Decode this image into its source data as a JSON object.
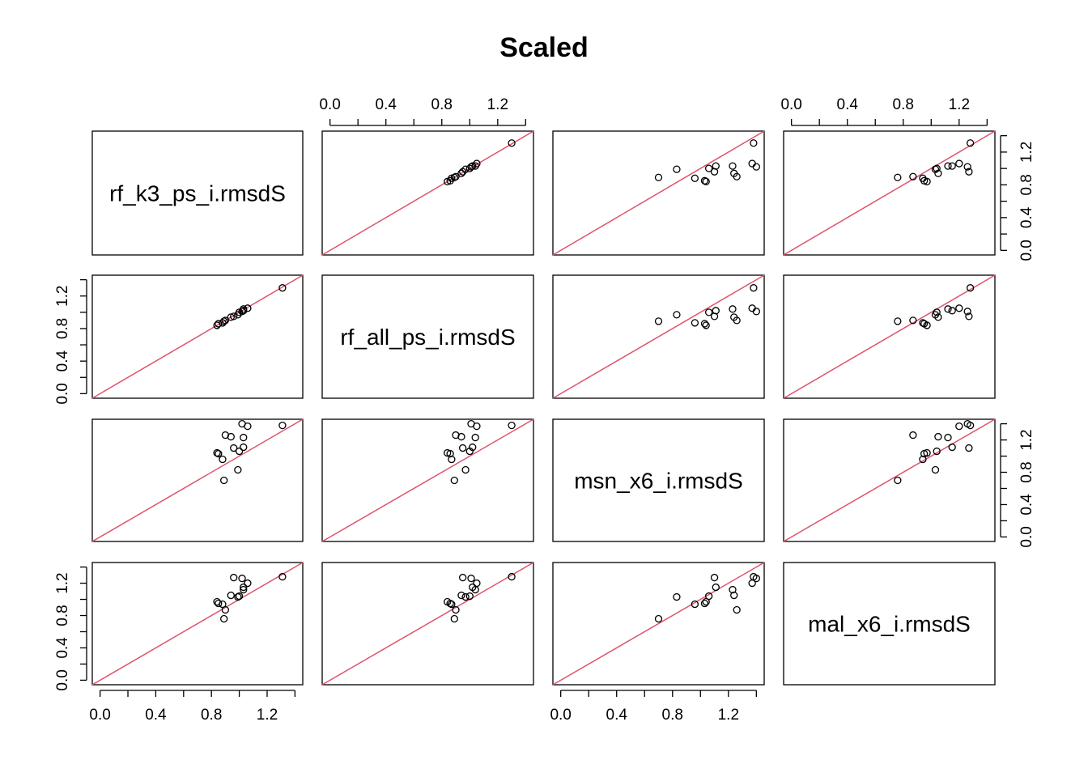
{
  "chart_data": {
    "type": "scatter",
    "subtype": "pairs-matrix",
    "title": "Scaled",
    "variables": [
      "rf_k3_ps_i.rmsdS",
      "rf_all_ps_i.rmsdS",
      "msn_x6_i.rmsdS",
      "mal_x6_i.rmsdS"
    ],
    "axis_range": [
      0,
      1.4
    ],
    "ticks": [
      0,
      0.2,
      0.4,
      0.6,
      0.8,
      1.0,
      1.2,
      1.4
    ],
    "tick_labels": [
      "0.0",
      "0.4",
      "0.8",
      "1.2"
    ],
    "tick_label_values": [
      0,
      0.4,
      0.8,
      1.2
    ],
    "reference_line": {
      "slope": 1,
      "intercept": 0,
      "color": "#DF536B"
    },
    "grid": false,
    "observations": [
      {
        "rf_k3_ps_i.rmsdS": 0.84,
        "rf_all_ps_i.rmsdS": 0.84,
        "msn_x6_i.rmsdS": 1.04,
        "mal_x6_i.rmsdS": 0.97
      },
      {
        "rf_k3_ps_i.rmsdS": 0.85,
        "rf_all_ps_i.rmsdS": 0.86,
        "msn_x6_i.rmsdS": 1.03,
        "mal_x6_i.rmsdS": 0.95
      },
      {
        "rf_k3_ps_i.rmsdS": 0.88,
        "rf_all_ps_i.rmsdS": 0.87,
        "msn_x6_i.rmsdS": 0.96,
        "mal_x6_i.rmsdS": 0.94
      },
      {
        "rf_k3_ps_i.rmsdS": 0.89,
        "rf_all_ps_i.rmsdS": 0.89,
        "msn_x6_i.rmsdS": 0.7,
        "mal_x6_i.rmsdS": 0.76
      },
      {
        "rf_k3_ps_i.rmsdS": 0.9,
        "rf_all_ps_i.rmsdS": 0.9,
        "msn_x6_i.rmsdS": 1.26,
        "mal_x6_i.rmsdS": 0.87
      },
      {
        "rf_k3_ps_i.rmsdS": 0.94,
        "rf_all_ps_i.rmsdS": 0.94,
        "msn_x6_i.rmsdS": 1.24,
        "mal_x6_i.rmsdS": 1.05
      },
      {
        "rf_k3_ps_i.rmsdS": 0.96,
        "rf_all_ps_i.rmsdS": 0.95,
        "msn_x6_i.rmsdS": 1.1,
        "mal_x6_i.rmsdS": 1.27
      },
      {
        "rf_k3_ps_i.rmsdS": 0.99,
        "rf_all_ps_i.rmsdS": 0.97,
        "msn_x6_i.rmsdS": 0.83,
        "mal_x6_i.rmsdS": 1.03
      },
      {
        "rf_k3_ps_i.rmsdS": 1.0,
        "rf_all_ps_i.rmsdS": 1.0,
        "msn_x6_i.rmsdS": 1.06,
        "mal_x6_i.rmsdS": 1.04
      },
      {
        "rf_k3_ps_i.rmsdS": 1.02,
        "rf_all_ps_i.rmsdS": 1.01,
        "msn_x6_i.rmsdS": 1.4,
        "mal_x6_i.rmsdS": 1.26
      },
      {
        "rf_k3_ps_i.rmsdS": 1.03,
        "rf_all_ps_i.rmsdS": 1.02,
        "msn_x6_i.rmsdS": 1.11,
        "mal_x6_i.rmsdS": 1.15
      },
      {
        "rf_k3_ps_i.rmsdS": 1.03,
        "rf_all_ps_i.rmsdS": 1.04,
        "msn_x6_i.rmsdS": 1.23,
        "mal_x6_i.rmsdS": 1.12
      },
      {
        "rf_k3_ps_i.rmsdS": 1.06,
        "rf_all_ps_i.rmsdS": 1.05,
        "msn_x6_i.rmsdS": 1.37,
        "mal_x6_i.rmsdS": 1.2
      },
      {
        "rf_k3_ps_i.rmsdS": 1.31,
        "rf_all_ps_i.rmsdS": 1.3,
        "msn_x6_i.rmsdS": 1.38,
        "mal_x6_i.rmsdS": 1.28
      }
    ]
  }
}
